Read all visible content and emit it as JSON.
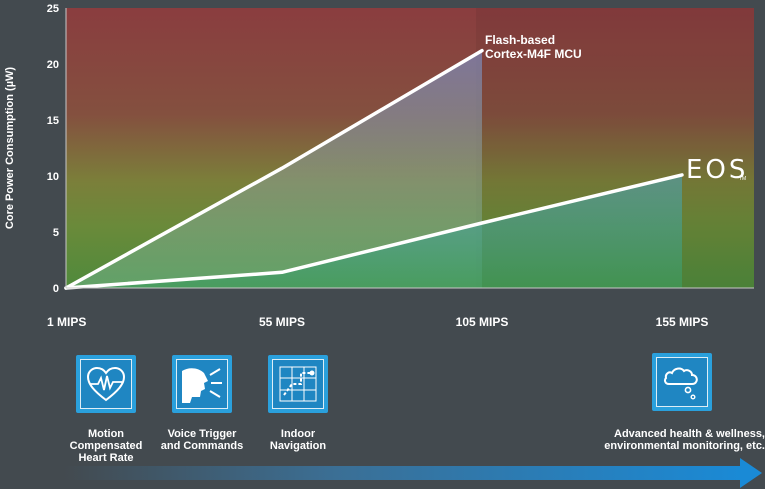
{
  "chart_data": {
    "type": "area",
    "ylabel": "Core Power Consumption (µW)",
    "xlabel": "",
    "ylim": [
      0,
      25
    ],
    "yticks": [
      0,
      5,
      10,
      15,
      20,
      25
    ],
    "x_categories": [
      "1 MIPS",
      "55 MIPS",
      "105 MIPS",
      "155 MIPS"
    ],
    "x_values": [
      1,
      55,
      105,
      155
    ],
    "xlim": [
      1,
      155
    ],
    "grid": false,
    "background_gradient": [
      "#8a3f3f",
      "#7a5b3c",
      "#6e8a3c",
      "#4d8a3a"
    ],
    "series": [
      {
        "name": "Flash-based Cortex-M4F MCU",
        "points": [
          [
            1,
            0
          ],
          [
            55,
            10.7
          ],
          [
            105,
            21.2
          ]
        ]
      },
      {
        "name": "EOS",
        "points": [
          [
            1,
            0
          ],
          [
            55,
            1.4
          ],
          [
            105,
            5.8
          ],
          [
            155,
            10.1
          ]
        ]
      }
    ],
    "annotations": {
      "flash": [
        "Flash-based",
        "Cortex-M4F MCU"
      ],
      "eos_logo": "EOS",
      "eos_tm": "TM"
    }
  },
  "applications": [
    {
      "icon": "heart-rate-icon",
      "lines": [
        "Motion",
        "Compensated",
        "Heart Rate"
      ]
    },
    {
      "icon": "voice-trigger-icon",
      "lines": [
        "Voice Trigger",
        "and Commands"
      ]
    },
    {
      "icon": "indoor-navigation-icon",
      "lines": [
        "Indoor",
        "Navigation"
      ]
    },
    {
      "icon": "cloud-thought-icon",
      "lines": [
        "Advanced health & wellness,",
        "environmental monitoring, etc."
      ]
    }
  ],
  "colors": {
    "line": "#ffffff",
    "icon_blue": "#2aa0dc",
    "arrow_blue": "#1a8ad6",
    "background": "#434a4f"
  }
}
